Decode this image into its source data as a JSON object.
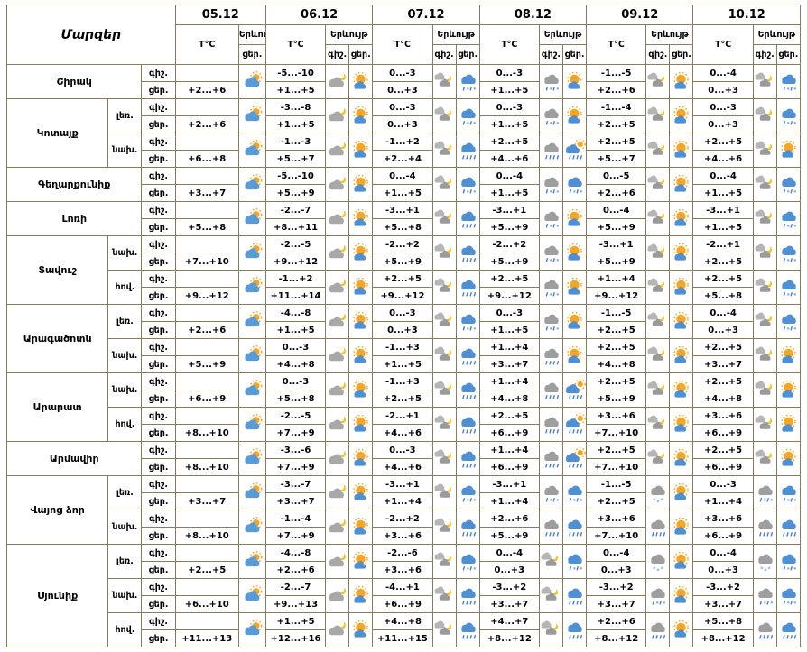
{
  "labels": {
    "regions": "Մարզեր",
    "temp": "T°C",
    "phenomenon": "Երևույթ",
    "night": "գիշ.",
    "day": "ցեր."
  },
  "dates": [
    {
      "key": "d05",
      "label": "05.12",
      "cols": [
        "day"
      ]
    },
    {
      "key": "d06",
      "label": "06.12",
      "cols": [
        "night",
        "day"
      ]
    },
    {
      "key": "d07",
      "label": "07.12",
      "cols": [
        "night",
        "day"
      ]
    },
    {
      "key": "d08",
      "label": "08.12",
      "cols": [
        "night",
        "day"
      ]
    },
    {
      "key": "d09",
      "label": "09.12",
      "cols": [
        "night",
        "day"
      ]
    },
    {
      "key": "d10",
      "label": "10.12",
      "cols": [
        "night",
        "day"
      ]
    }
  ],
  "icons": {
    "pc-day": "partly-cloudy-day-icon",
    "cloud-moon": "cloudy-night-moon-icon",
    "sun-cloud": "sunny-with-cloud-icon",
    "moon-clouds": "moon-behind-clouds-icon",
    "rain-blue": "rain-day-icon",
    "sleet-blue": "sleet-day-icon",
    "rain-gray": "rain-night-icon",
    "sleet-gray": "sleet-night-icon",
    "snow-gray": "snow-night-icon",
    "sun-shower": "sun-shower-icon"
  },
  "colors": {
    "border": "#8a7a5f",
    "cloud_blue": "#4f8fd3",
    "cloud_gray": "#9e9e9e",
    "sun": "#f6a623",
    "moon": "#f2c12e",
    "rain": "#4a79c9"
  },
  "rows": [
    {
      "region": "Շիրակ",
      "area": null,
      "d05": {
        "day": "+2...+6",
        "icon": "pc-day"
      },
      "d06": {
        "night": "-5...-10",
        "day": "+1...+5",
        "nicon": "cloud-moon",
        "dicon": "sun-cloud"
      },
      "d07": {
        "night": "0...-3",
        "day": "0...+3",
        "nicon": "moon-clouds",
        "dicon": "sleet-blue"
      },
      "d08": {
        "night": "0...-3",
        "day": "+1...+5",
        "nicon": "sleet-gray",
        "dicon": "sun-cloud"
      },
      "d09": {
        "night": "-1...-5",
        "day": "+2...+6",
        "nicon": "moon-clouds",
        "dicon": "sun-cloud"
      },
      "d10": {
        "night": "0...-4",
        "day": "0...+3",
        "nicon": "moon-clouds",
        "dicon": "sleet-blue"
      }
    },
    {
      "region": "Կոտայք",
      "area": "լեռ.",
      "d05": {
        "day": "+2...+6",
        "icon": "pc-day"
      },
      "d06": {
        "night": "-3...-8",
        "day": "+1...+5",
        "nicon": "cloud-moon",
        "dicon": "sun-cloud"
      },
      "d07": {
        "night": "0...-3",
        "day": "0...+3",
        "nicon": "moon-clouds",
        "dicon": "sleet-blue"
      },
      "d08": {
        "night": "0...-3",
        "day": "+1...+5",
        "nicon": "sleet-gray",
        "dicon": "sun-cloud"
      },
      "d09": {
        "night": "-1...-4",
        "day": "+2...+5",
        "nicon": "moon-clouds",
        "dicon": "sun-cloud"
      },
      "d10": {
        "night": "0...-3",
        "day": "0...+3",
        "nicon": "moon-clouds",
        "dicon": "sleet-blue"
      }
    },
    {
      "region": "Կոտայք",
      "area": "նախ.",
      "d05": {
        "day": "+6...+8",
        "icon": "pc-day"
      },
      "d06": {
        "night": "-1...-3",
        "day": "+5...+7",
        "nicon": "cloud-moon",
        "dicon": "sun-cloud"
      },
      "d07": {
        "night": "-1...+2",
        "day": "+2...+4",
        "nicon": "moon-clouds",
        "dicon": "rain-blue"
      },
      "d08": {
        "night": "+2...+5",
        "day": "+4...+6",
        "nicon": "rain-gray",
        "dicon": "sun-shower"
      },
      "d09": {
        "night": "+2...+5",
        "day": "+5...+7",
        "nicon": "moon-clouds",
        "dicon": "sun-cloud"
      },
      "d10": {
        "night": "+2...+5",
        "day": "+4...+6",
        "nicon": "moon-clouds",
        "dicon": "sun-cloud"
      }
    },
    {
      "region": "Գեղարքունիք",
      "area": null,
      "d05": {
        "day": "+3...+7",
        "icon": "pc-day"
      },
      "d06": {
        "night": "-5...-10",
        "day": "+5...+9",
        "nicon": "cloud-moon",
        "dicon": "sun-cloud"
      },
      "d07": {
        "night": "0...-4",
        "day": "+1...+5",
        "nicon": "moon-clouds",
        "dicon": "sleet-blue"
      },
      "d08": {
        "night": "0...-4",
        "day": "+1...+5",
        "nicon": "sleet-gray",
        "dicon": "sleet-blue"
      },
      "d09": {
        "night": "0...-5",
        "day": "+2...+6",
        "nicon": "moon-clouds",
        "dicon": "sun-cloud"
      },
      "d10": {
        "night": "0...-4",
        "day": "+1...+5",
        "nicon": "moon-clouds",
        "dicon": "sleet-blue"
      }
    },
    {
      "region": "Լոռի",
      "area": null,
      "d05": {
        "day": "+5...+8",
        "icon": "pc-day"
      },
      "d06": {
        "night": "-2...-7",
        "day": "+8...+11",
        "nicon": "cloud-moon",
        "dicon": "sun-cloud"
      },
      "d07": {
        "night": "-3...+1",
        "day": "+5...+8",
        "nicon": "moon-clouds",
        "dicon": "rain-blue"
      },
      "d08": {
        "night": "-3...+1",
        "day": "+5...+9",
        "nicon": "sleet-gray",
        "dicon": "sun-cloud"
      },
      "d09": {
        "night": "0...-4",
        "day": "+5...+9",
        "nicon": "moon-clouds",
        "dicon": "sun-cloud"
      },
      "d10": {
        "night": "-3...+1",
        "day": "+1...+5",
        "nicon": "moon-clouds",
        "dicon": "sleet-blue"
      }
    },
    {
      "region": "Տավուշ",
      "area": "նախ.",
      "d05": {
        "day": "+7...+10",
        "icon": "pc-day"
      },
      "d06": {
        "night": "-2...-5",
        "day": "+9...+12",
        "nicon": "cloud-moon",
        "dicon": "sun-cloud"
      },
      "d07": {
        "night": "-2...+2",
        "day": "+5...+9",
        "nicon": "moon-clouds",
        "dicon": "rain-blue"
      },
      "d08": {
        "night": "-2...+2",
        "day": "+5...+9",
        "nicon": "sleet-gray",
        "dicon": "sun-cloud"
      },
      "d09": {
        "night": "-3...+1",
        "day": "+5...+9",
        "nicon": "moon-clouds",
        "dicon": "sun-cloud"
      },
      "d10": {
        "night": "-2...+1",
        "day": "+2...+5",
        "nicon": "moon-clouds",
        "dicon": "sleet-blue"
      }
    },
    {
      "region": "Տավուշ",
      "area": "հով.",
      "d05": {
        "day": "+9...+12",
        "icon": "pc-day"
      },
      "d06": {
        "night": "-1...+2",
        "day": "+11...+14",
        "nicon": "cloud-moon",
        "dicon": "sun-cloud"
      },
      "d07": {
        "night": "+2...+5",
        "day": "+9...+12",
        "nicon": "moon-clouds",
        "dicon": "rain-blue"
      },
      "d08": {
        "night": "+2...+5",
        "day": "+9...+12",
        "nicon": "sleet-gray",
        "dicon": "sun-cloud"
      },
      "d09": {
        "night": "+1...+4",
        "day": "+9...+12",
        "nicon": "moon-clouds",
        "dicon": "sun-cloud"
      },
      "d10": {
        "night": "+2...+5",
        "day": "+5...+8",
        "nicon": "moon-clouds",
        "dicon": "sleet-blue"
      }
    },
    {
      "region": "Արագածոտն",
      "area": "լեռ.",
      "d05": {
        "day": "+2...+6",
        "icon": "pc-day"
      },
      "d06": {
        "night": "-4...-8",
        "day": "+1...+5",
        "nicon": "cloud-moon",
        "dicon": "sun-cloud"
      },
      "d07": {
        "night": "0...-3",
        "day": "0...+3",
        "nicon": "moon-clouds",
        "dicon": "sleet-blue"
      },
      "d08": {
        "night": "0...-3",
        "day": "+1...+5",
        "nicon": "sleet-gray",
        "dicon": "sun-cloud"
      },
      "d09": {
        "night": "-1...-5",
        "day": "+2...+5",
        "nicon": "moon-clouds",
        "dicon": "sun-cloud"
      },
      "d10": {
        "night": "0...-4",
        "day": "0...+3",
        "nicon": "moon-clouds",
        "dicon": "sleet-blue"
      }
    },
    {
      "region": "Արագածոտն",
      "area": "նախ.",
      "d05": {
        "day": "+5...+9",
        "icon": "pc-day"
      },
      "d06": {
        "night": "0...-3",
        "day": "+4...+8",
        "nicon": "cloud-moon",
        "dicon": "sun-cloud"
      },
      "d07": {
        "night": "-1...+3",
        "day": "+1...+5",
        "nicon": "moon-clouds",
        "dicon": "rain-blue"
      },
      "d08": {
        "night": "+1...+4",
        "day": "+3...+7",
        "nicon": "rain-gray",
        "dicon": "sun-cloud"
      },
      "d09": {
        "night": "+2...+5",
        "day": "+4...+8",
        "nicon": "moon-clouds",
        "dicon": "sun-cloud"
      },
      "d10": {
        "night": "+2...+5",
        "day": "+3...+7",
        "nicon": "moon-clouds",
        "dicon": "sun-cloud"
      }
    },
    {
      "region": "Արարատ",
      "area": "նախ.",
      "d05": {
        "day": "+6...+9",
        "icon": "pc-day"
      },
      "d06": {
        "night": "0...-3",
        "day": "+5...+8",
        "nicon": "cloud-moon",
        "dicon": "sun-cloud"
      },
      "d07": {
        "night": "-1...+3",
        "day": "+2...+5",
        "nicon": "moon-clouds",
        "dicon": "rain-blue"
      },
      "d08": {
        "night": "+1...+4",
        "day": "+4...+8",
        "nicon": "rain-gray",
        "dicon": "sun-shower"
      },
      "d09": {
        "night": "+2...+5",
        "day": "+5...+9",
        "nicon": "moon-clouds",
        "dicon": "sun-cloud"
      },
      "d10": {
        "night": "+2...+5",
        "day": "+4...+8",
        "nicon": "moon-clouds",
        "dicon": "sun-cloud"
      }
    },
    {
      "region": "Արարատ",
      "area": "հով.",
      "d05": {
        "day": "+8...+10",
        "icon": "pc-day"
      },
      "d06": {
        "night": "-2...-5",
        "day": "+7...+9",
        "nicon": "cloud-moon",
        "dicon": "sun-cloud"
      },
      "d07": {
        "night": "-2...+1",
        "day": "+4...+6",
        "nicon": "moon-clouds",
        "dicon": "rain-blue"
      },
      "d08": {
        "night": "+2...+5",
        "day": "+6...+9",
        "nicon": "rain-gray",
        "dicon": "sun-shower"
      },
      "d09": {
        "night": "+3...+6",
        "day": "+7...+10",
        "nicon": "moon-clouds",
        "dicon": "sun-cloud"
      },
      "d10": {
        "night": "+3...+6",
        "day": "+6...+9",
        "nicon": "moon-clouds",
        "dicon": "sun-cloud"
      }
    },
    {
      "region": "Արմավիր",
      "area": null,
      "d05": {
        "day": "+8...+10",
        "icon": "pc-day"
      },
      "d06": {
        "night": "-3...-6",
        "day": "+7...+9",
        "nicon": "cloud-moon",
        "dicon": "sun-cloud"
      },
      "d07": {
        "night": "0...-3",
        "day": "+4...+6",
        "nicon": "moon-clouds",
        "dicon": "rain-blue"
      },
      "d08": {
        "night": "+1...+4",
        "day": "+6...+9",
        "nicon": "rain-gray",
        "dicon": "sun-shower"
      },
      "d09": {
        "night": "+2...+5",
        "day": "+7...+10",
        "nicon": "moon-clouds",
        "dicon": "sun-cloud"
      },
      "d10": {
        "night": "+2...+5",
        "day": "+6...+9",
        "nicon": "moon-clouds",
        "dicon": "sun-cloud"
      }
    },
    {
      "region": "Վայոց ձոր",
      "area": "լեռ.",
      "d05": {
        "day": "+3...+7",
        "icon": "pc-day"
      },
      "d06": {
        "night": "-3...-7",
        "day": "+3...+7",
        "nicon": "cloud-moon",
        "dicon": "sun-cloud"
      },
      "d07": {
        "night": "-3...+1",
        "day": "+1...+4",
        "nicon": "moon-clouds",
        "dicon": "sleet-blue"
      },
      "d08": {
        "night": "-3...+1",
        "day": "+1...+4",
        "nicon": "sleet-gray",
        "dicon": "sleet-blue"
      },
      "d09": {
        "night": "-1...-5",
        "day": "+2...+5",
        "nicon": "snow-gray",
        "dicon": "sun-cloud"
      },
      "d10": {
        "night": "0...-3",
        "day": "+1...+4",
        "nicon": "sleet-gray",
        "dicon": "sleet-blue"
      }
    },
    {
      "region": "Վայոց ձոր",
      "area": "նախ.",
      "d05": {
        "day": "+8...+10",
        "icon": "pc-day"
      },
      "d06": {
        "night": "-1...-4",
        "day": "+7...+9",
        "nicon": "cloud-moon",
        "dicon": "sun-cloud"
      },
      "d07": {
        "night": "-2...+2",
        "day": "+3...+6",
        "nicon": "moon-clouds",
        "dicon": "rain-blue"
      },
      "d08": {
        "night": "+2...+6",
        "day": "+5...+9",
        "nicon": "rain-gray",
        "dicon": "rain-blue"
      },
      "d09": {
        "night": "+3...+6",
        "day": "+7...+10",
        "nicon": "rain-gray",
        "dicon": "sun-cloud"
      },
      "d10": {
        "night": "+3...+6",
        "day": "+6...+9",
        "nicon": "rain-gray",
        "dicon": "rain-blue"
      }
    },
    {
      "region": "Սյունիք",
      "area": "լեռ.",
      "d05": {
        "day": "+2...+5",
        "icon": "pc-day"
      },
      "d06": {
        "night": "-4...-8",
        "day": "+2...+6",
        "nicon": "cloud-moon",
        "dicon": "sun-cloud"
      },
      "d07": {
        "night": "-2...-6",
        "day": "+3...+6",
        "nicon": "moon-clouds",
        "dicon": "sleet-blue"
      },
      "d08": {
        "night": "0...-4",
        "day": "0...+3",
        "nicon": "moon-clouds",
        "dicon": "sleet-blue"
      },
      "d09": {
        "night": "0...-4",
        "day": "0...+3",
        "nicon": "snow-gray",
        "dicon": "sun-cloud"
      },
      "d10": {
        "night": "0...-4",
        "day": "0...+3",
        "nicon": "snow-gray",
        "dicon": "sleet-blue"
      }
    },
    {
      "region": "Սյունիք",
      "area": "նախ.",
      "d05": {
        "day": "+6...+10",
        "icon": "pc-day"
      },
      "d06": {
        "night": "-2...-7",
        "day": "+9...+13",
        "nicon": "cloud-moon",
        "dicon": "sun-cloud"
      },
      "d07": {
        "night": "-4...+1",
        "day": "+6...+9",
        "nicon": "moon-clouds",
        "dicon": "rain-blue"
      },
      "d08": {
        "night": "-3...+2",
        "day": "+3...+7",
        "nicon": "moon-clouds",
        "dicon": "rain-blue"
      },
      "d09": {
        "night": "-3...+2",
        "day": "+3...+7",
        "nicon": "sleet-gray",
        "dicon": "sun-cloud"
      },
      "d10": {
        "night": "-3...+2",
        "day": "+3...+7",
        "nicon": "sleet-gray",
        "dicon": "sleet-blue"
      }
    },
    {
      "region": "Սյունիք",
      "area": "հով.",
      "d05": {
        "day": "+11...+13",
        "icon": "pc-day"
      },
      "d06": {
        "night": "+1...+5",
        "day": "+12...+16",
        "nicon": "cloud-moon",
        "dicon": "sun-cloud"
      },
      "d07": {
        "night": "+4...+8",
        "day": "+11...+15",
        "nicon": "moon-clouds",
        "dicon": "rain-blue"
      },
      "d08": {
        "night": "+4...+7",
        "day": "+8...+12",
        "nicon": "moon-clouds",
        "dicon": "rain-blue"
      },
      "d09": {
        "night": "+2...+6",
        "day": "+8...+12",
        "nicon": "rain-gray",
        "dicon": "sun-cloud"
      },
      "d10": {
        "night": "+5...+8",
        "day": "+8...+12",
        "nicon": "rain-gray",
        "dicon": "rain-blue"
      }
    }
  ]
}
